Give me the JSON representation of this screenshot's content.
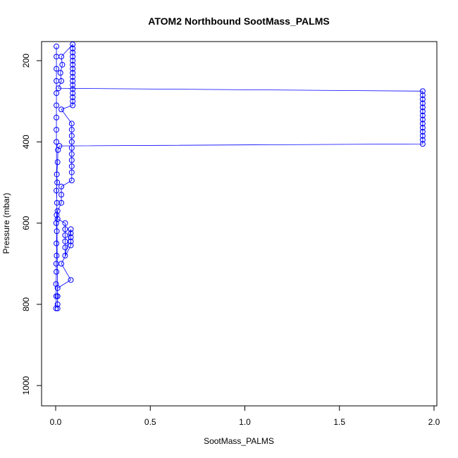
{
  "chart_data": {
    "type": "scatter",
    "title": "ATOM2 Northbound SootMass_PALMS",
    "x_label": "SootMass_PALMS",
    "y_label": "Pressure (mbar)",
    "xlim": [
      -0.0745,
      2.015
    ],
    "ylim": [
      1050,
      153
    ],
    "y_reversed": true,
    "xticks": [
      {
        "value": 0,
        "label": "0.0"
      },
      {
        "value": 0.5,
        "label": "0.5"
      },
      {
        "value": 1,
        "label": "1.0"
      },
      {
        "value": 1.5,
        "label": "1.5"
      },
      {
        "value": 2,
        "label": "2.0"
      }
    ],
    "yticks": [
      200,
      400,
      600,
      800,
      1000
    ],
    "grid": false,
    "connect_points": true,
    "series": [
      {
        "color": "#0000ff",
        "x": [
          0.002,
          0.003,
          0.002,
          0.004,
          0.003,
          0.005,
          0.004,
          0.006,
          0.003,
          0.005,
          0.007,
          0.004,
          0.008,
          0.006,
          0.01,
          0.012,
          0.02,
          1.94,
          1.94,
          1.94,
          1.94,
          1.94,
          1.94,
          1.94,
          1.94,
          1.94,
          1.94,
          1.94,
          1.94,
          1.94,
          1.94,
          0.015,
          0.03,
          0.025,
          0.035,
          0.03,
          0.09,
          0.09,
          0.09,
          0.09,
          0.09,
          0.09,
          0.09,
          0.09,
          0.09,
          0.09,
          0.09,
          0.09,
          0.09,
          0.09,
          0.09,
          0.09,
          0.03,
          0.085,
          0.085,
          0.085,
          0.085,
          0.085,
          0.085,
          0.085,
          0.085,
          0.085,
          0.085,
          0.03,
          0.03,
          0.03,
          0.01,
          0.01,
          0.05,
          0.05,
          0.05,
          0.05,
          0.05,
          0.05,
          0.08,
          0.08,
          0.08,
          0.08,
          0.08,
          0.03,
          0.08,
          0.01,
          0.01,
          0.01,
          0.01,
          0.004,
          0.004,
          0.004,
          0.004,
          0.004,
          0.004,
          0.004,
          0.004,
          0.004
        ],
        "values": [
          810,
          780,
          750,
          720,
          700,
          680,
          650,
          620,
          600,
          580,
          550,
          520,
          500,
          480,
          450,
          420,
          410,
          405,
          395,
          385,
          375,
          365,
          355,
          345,
          335,
          325,
          315,
          305,
          295,
          285,
          275,
          268,
          250,
          230,
          210,
          190,
          160,
          170,
          180,
          190,
          200,
          210,
          220,
          230,
          240,
          250,
          260,
          270,
          280,
          290,
          300,
          310,
          320,
          355,
          370,
          385,
          400,
          415,
          430,
          445,
          460,
          475,
          495,
          510,
          530,
          550,
          570,
          590,
          600,
          615,
          630,
          645,
          660,
          680,
          615,
          625,
          635,
          645,
          655,
          700,
          740,
          760,
          780,
          800,
          810,
          400,
          370,
          340,
          310,
          280,
          250,
          220,
          190,
          165
        ]
      }
    ]
  }
}
